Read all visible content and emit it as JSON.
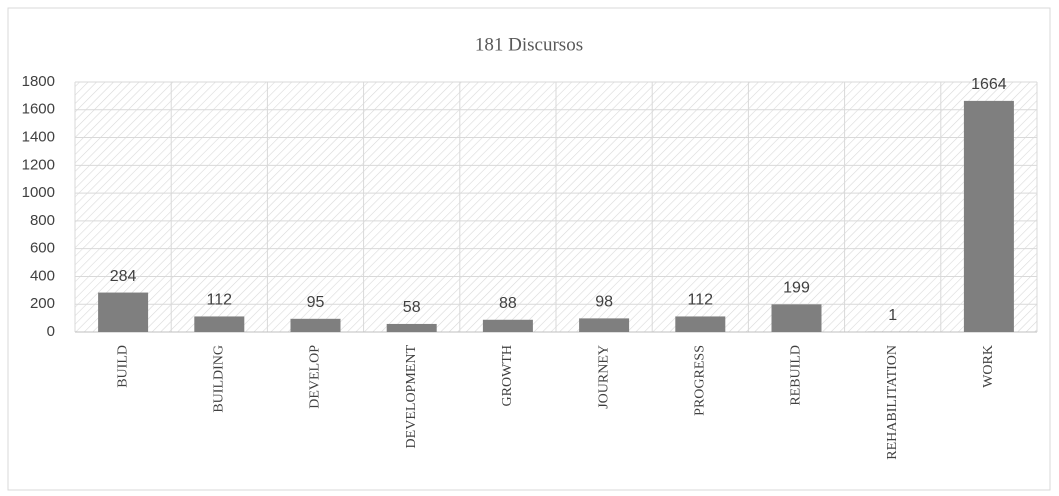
{
  "chart_data": {
    "type": "bar",
    "title": "181 Discursos",
    "categories": [
      "BUILD",
      "BUILDING",
      "DEVELOP",
      "DEVELOPMENT",
      "GROWTH",
      "JOURNEY",
      "PROGRESS",
      "REBUILD",
      "REHABILITATION",
      "WORK"
    ],
    "values": [
      284,
      112,
      95,
      58,
      88,
      98,
      112,
      199,
      1,
      1664
    ],
    "color": "#7f7f7f",
    "ylim": [
      0,
      1800
    ],
    "yticks": [
      0,
      200,
      400,
      600,
      800,
      1000,
      1200,
      1400,
      1600,
      1800
    ],
    "grid": true
  }
}
